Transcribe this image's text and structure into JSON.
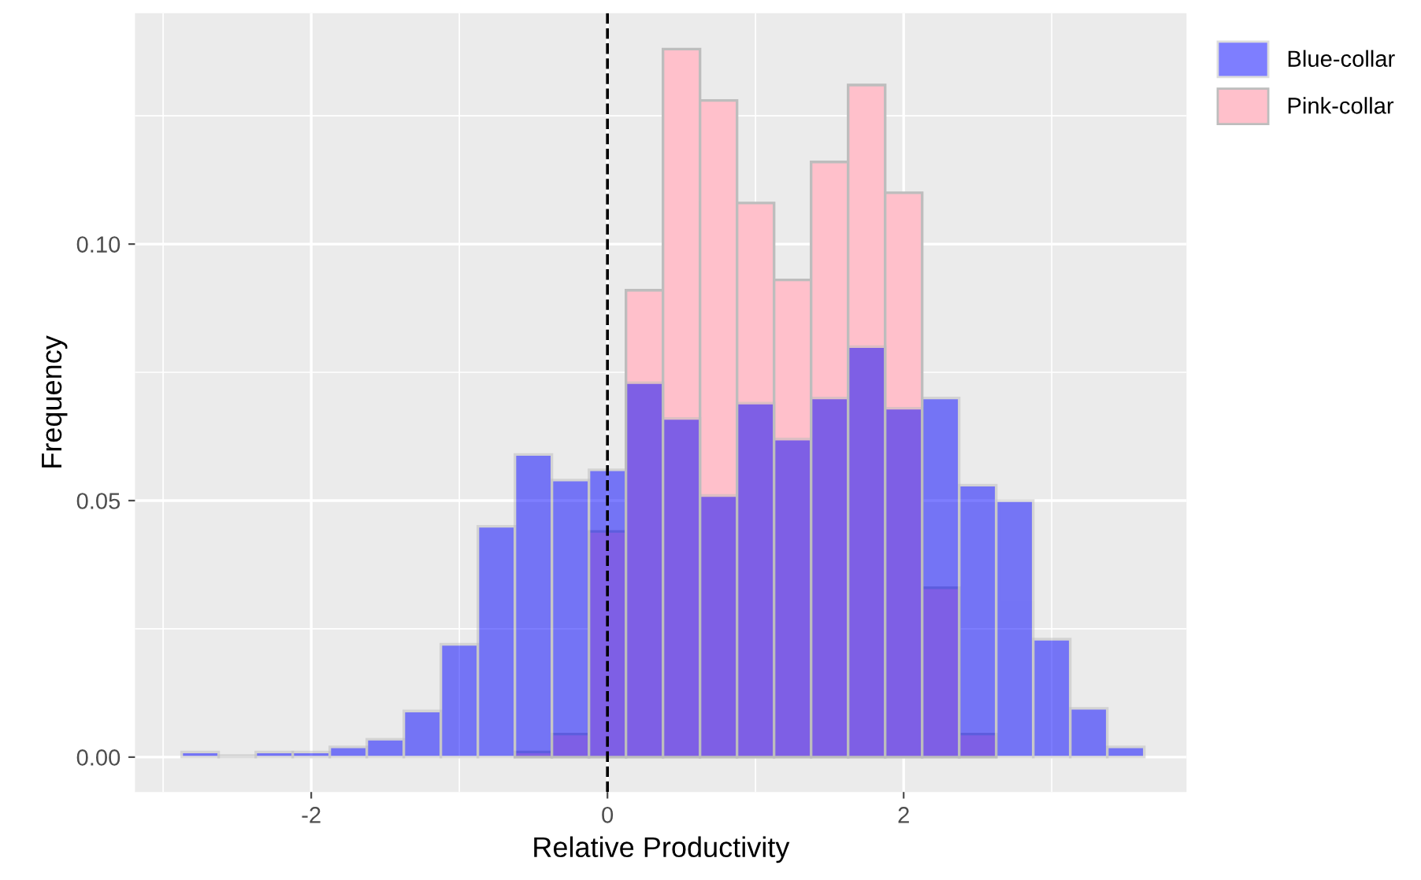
{
  "chart_data": {
    "type": "histogram",
    "xlabel": "Relative Productivity",
    "ylabel": "Frequency",
    "bins": [
      -2.875,
      -2.625,
      -2.375,
      -2.125,
      -1.875,
      -1.625,
      -1.375,
      -1.125,
      -0.875,
      -0.625,
      -0.375,
      -0.125,
      0.125,
      0.375,
      0.625,
      0.875,
      1.125,
      1.375,
      1.625,
      1.875,
      2.125,
      2.375,
      2.625,
      2.875,
      3.125,
      3.375,
      3.625
    ],
    "series": [
      {
        "name": "Blue-collar",
        "color": "#0000ff",
        "values": [
          0.001,
          0.0003,
          0.001,
          0.001,
          0.002,
          0.0035,
          0.009,
          0.022,
          0.045,
          0.059,
          0.054,
          0.056,
          0.073,
          0.066,
          0.051,
          0.069,
          0.062,
          0.07,
          0.08,
          0.068,
          0.07,
          0.053,
          0.05,
          0.023,
          0.0095,
          0.002
        ]
      },
      {
        "name": "Pink-collar",
        "color": "#ffc0cb",
        "values": [
          0,
          0,
          0,
          0,
          0,
          0,
          0,
          0,
          0,
          0.001,
          0.0045,
          0.044,
          0.091,
          0.138,
          0.128,
          0.108,
          0.093,
          0.116,
          0.131,
          0.11,
          0.033,
          0.0045,
          0,
          0,
          0,
          0
        ]
      }
    ],
    "xlim": [
      -3.19,
      3.91
    ],
    "ylim": [
      -0.0068,
      0.145
    ],
    "xticks": [
      -2,
      0,
      2
    ],
    "yticks": [
      {
        "value": 0,
        "label": "0.00"
      },
      {
        "value": 0.05,
        "label": "0.05"
      },
      {
        "value": 0.1,
        "label": "0.10"
      }
    ],
    "ref_lines": [
      {
        "axis": "x",
        "value": 0,
        "color": "#000000",
        "line_style": "dashed"
      }
    ],
    "grid": true,
    "legend": "top right"
  }
}
